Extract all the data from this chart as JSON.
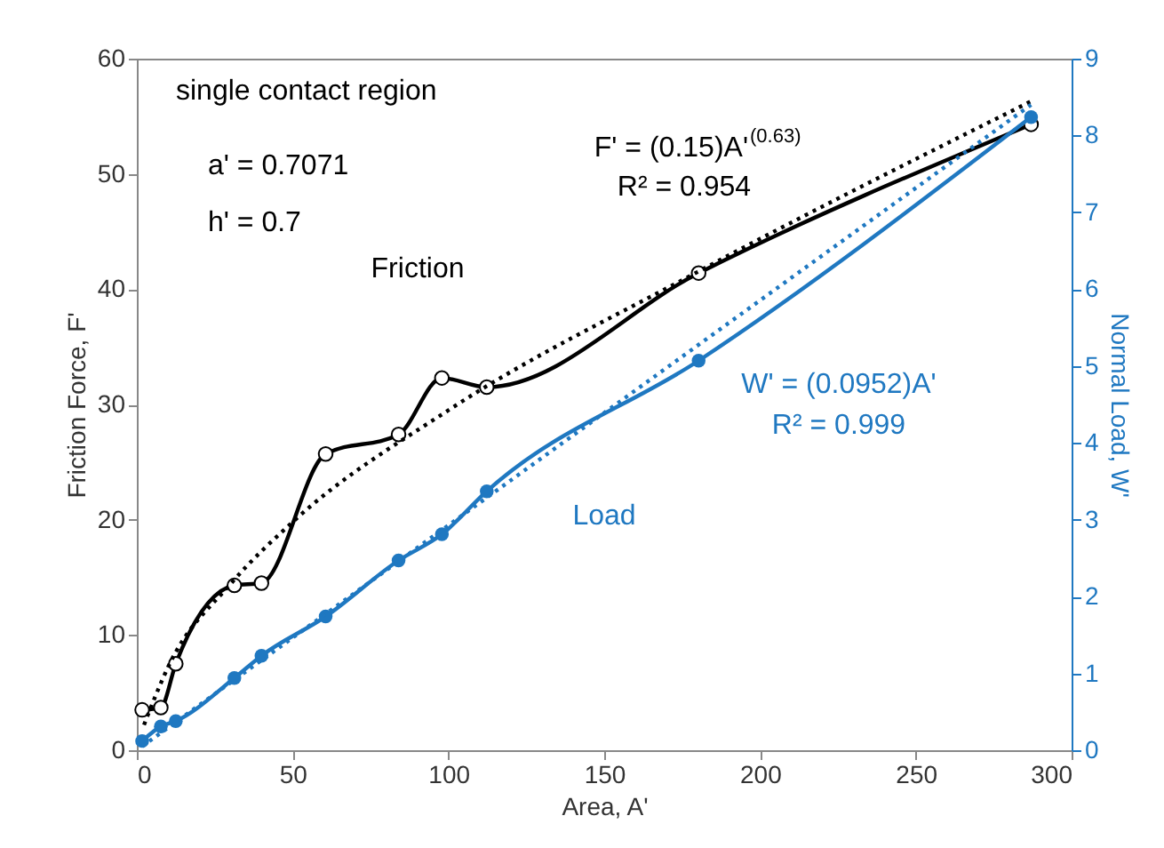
{
  "chart_data": {
    "type": "line",
    "xlabel": "Area, A'",
    "ylabel": "Friction Force, F'",
    "y2label": "Normal Load, W'",
    "xlim": [
      0,
      300
    ],
    "xticks": [
      0,
      50,
      100,
      150,
      200,
      250,
      300
    ],
    "ylim": [
      0,
      60
    ],
    "yticks": [
      0,
      10,
      20,
      30,
      40,
      50,
      60
    ],
    "y2lim": [
      0,
      9
    ],
    "y2ticks": [
      0,
      1,
      2,
      3,
      4,
      5,
      6,
      7,
      8,
      9
    ],
    "grid": false,
    "annotations": [
      "single contact region",
      "a' = 0.7071",
      "h' = 0.7",
      "F' = (0.15)A'$^{(0.63)}$",
      "R² = 0.954",
      "W' = (0.0952)A'",
      "R² = 0.999"
    ],
    "series": [
      {
        "name": "Friction",
        "color": "#000000",
        "marker": "circle",
        "line_style": "solid",
        "x": [
          1.7,
          7.7,
          12.5,
          31.3,
          40,
          60.6,
          84,
          97.9,
          112.3,
          180.3,
          287
        ],
        "values": [
          3.5,
          3.7,
          7.5,
          14.3,
          14.5,
          25.7,
          27.4,
          32.3,
          31.5,
          41.4,
          54.3
        ]
      },
      {
        "name": "Load",
        "color": "#1f78c1",
        "axis": "y2",
        "marker": "circle",
        "line_style": "solid",
        "x": [
          1.7,
          7.7,
          12.5,
          31.3,
          40,
          60.6,
          84,
          97.9,
          112.3,
          180.3,
          287
        ],
        "values": [
          0.12,
          0.31,
          0.38,
          0.94,
          1.23,
          1.74,
          2.47,
          2.81,
          3.37,
          5.07,
          8.24
        ]
      },
      {
        "type": "line",
        "color": "#000000",
        "marker": "none",
        "line_style": "dotted",
        "x": [
          2.3,
          10,
          30,
          50,
          100,
          180,
          287
        ],
        "values": [
          2.2,
          7.2,
          14.4,
          19.8,
          29.5,
          41.5,
          56.3
        ]
      },
      {
        "type": "line",
        "color": "#1f78c1",
        "axis": "y2",
        "marker": "none",
        "line_style": "dotted",
        "x": [
          1.7,
          287
        ],
        "values": [
          0.05,
          8.4
        ]
      }
    ]
  }
}
